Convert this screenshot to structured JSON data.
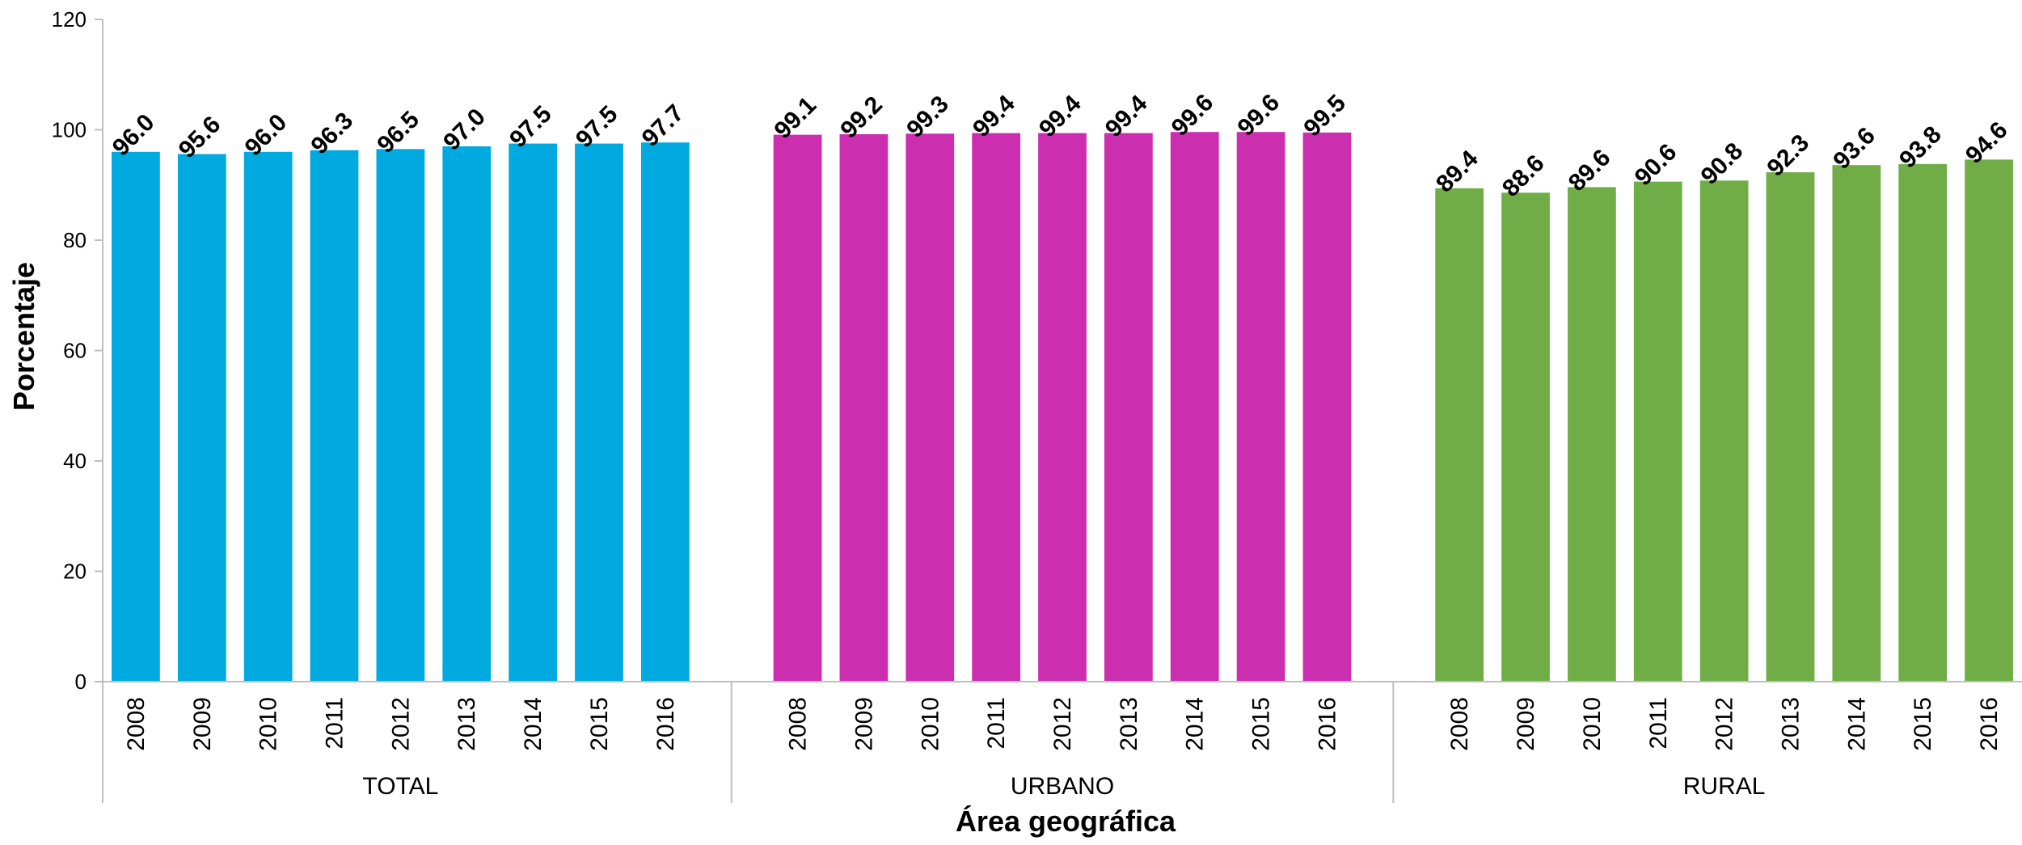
{
  "chart_data": {
    "type": "bar",
    "ylabel": "Porcentaje",
    "xlabel": "Área geográfica",
    "ylim": [
      0,
      120
    ],
    "yticks": [
      0,
      20,
      40,
      60,
      80,
      100,
      120
    ],
    "grid": false,
    "legend": "none",
    "groups": [
      {
        "name": "TOTAL",
        "color": "#00A9E0",
        "categories": [
          "2008",
          "2009",
          "2010",
          "2011",
          "2012",
          "2013",
          "2014",
          "2015",
          "2016"
        ],
        "values": [
          96.0,
          95.6,
          96.0,
          96.3,
          96.5,
          97.0,
          97.5,
          97.5,
          97.7
        ],
        "labels": [
          "96.0",
          "95.6",
          "96.0",
          "96.3",
          "96.5",
          "97.0",
          "97.5",
          "97.5",
          "97.7"
        ]
      },
      {
        "name": "URBANO",
        "color": "#CC2EB0",
        "categories": [
          "2008",
          "2009",
          "2010",
          "2011",
          "2012",
          "2013",
          "2014",
          "2015",
          "2016"
        ],
        "values": [
          99.1,
          99.2,
          99.3,
          99.4,
          99.4,
          99.4,
          99.6,
          99.6,
          99.5
        ],
        "labels": [
          "99.1",
          "99.2",
          "99.3",
          "99.4",
          "99.4",
          "99.4",
          "99.6",
          "99.6",
          "99.5"
        ]
      },
      {
        "name": "RURAL",
        "color": "#70AD47",
        "categories": [
          "2008",
          "2009",
          "2010",
          "2011",
          "2012",
          "2013",
          "2014",
          "2015",
          "2016"
        ],
        "values": [
          89.4,
          88.6,
          89.6,
          90.6,
          90.8,
          92.3,
          93.6,
          93.8,
          94.6
        ],
        "labels": [
          "89.4",
          "88.6",
          "89.6",
          "90.6",
          "90.8",
          "92.3",
          "93.6",
          "93.8",
          "94.6"
        ]
      }
    ]
  }
}
